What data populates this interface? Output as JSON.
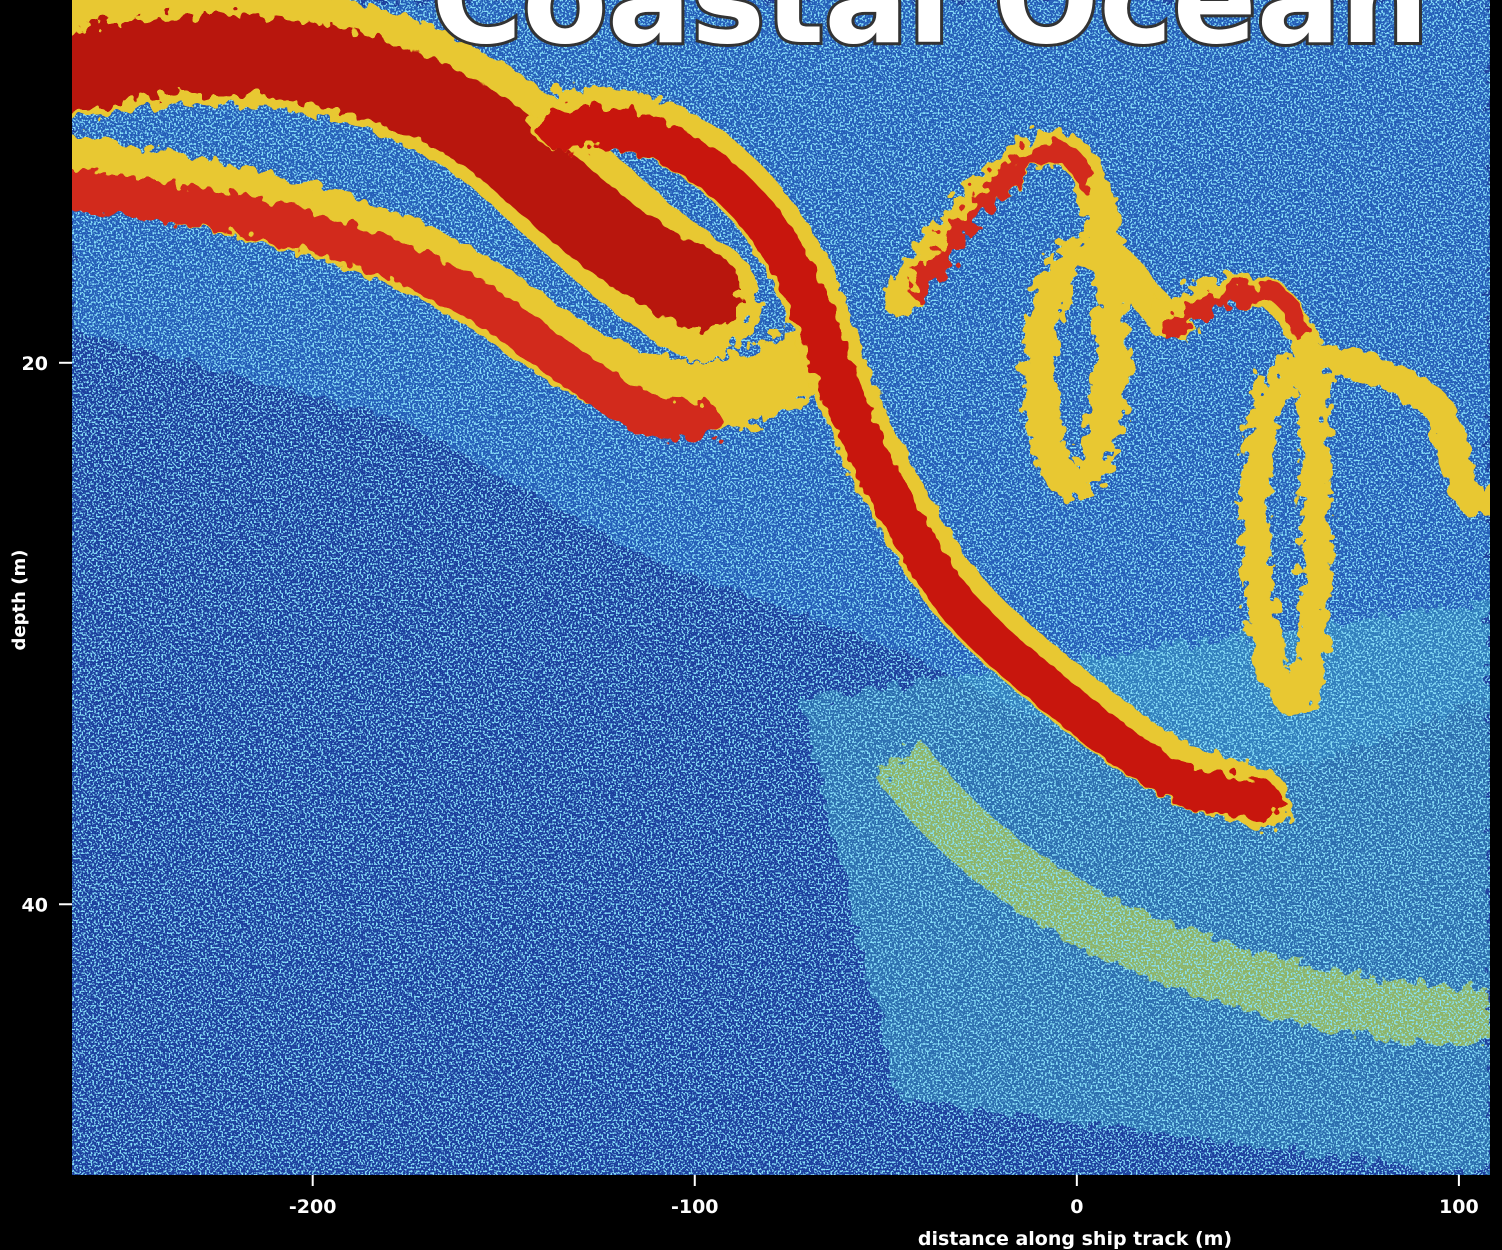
{
  "chart_data": {
    "type": "heatmap",
    "title": "Coastal Ocean",
    "x_label": "distance along ship track (m)",
    "y_label": "depth (m)",
    "xlim": [
      -263,
      105
    ],
    "xticks": [
      -200,
      -100,
      0,
      100
    ],
    "ylim": [
      6.6,
      50
    ],
    "yticks": [
      20,
      40
    ],
    "y_inverted": true
  }
}
